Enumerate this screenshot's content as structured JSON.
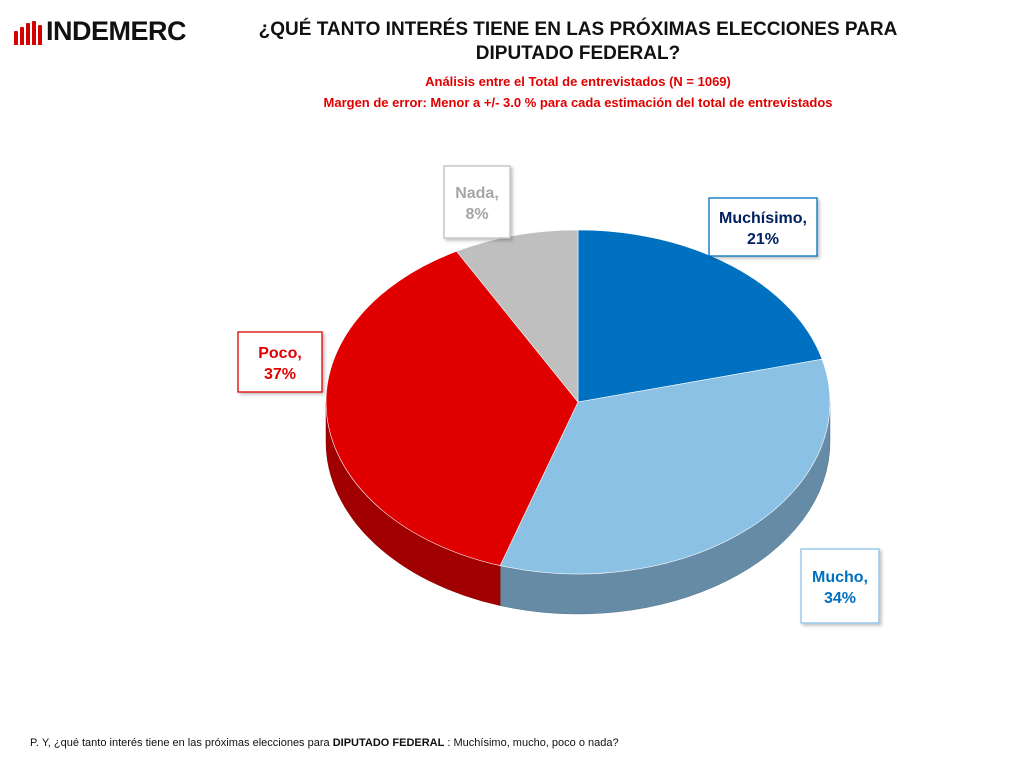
{
  "brand": {
    "name": "INDEMERC"
  },
  "header": {
    "title": "¿QUÉ TANTO INTERÉS TIENE EN LAS PRÓXIMAS ELECCIONES PARA DIPUTADO FEDERAL?",
    "subtitle1": "Análisis entre el Total de entrevistados (N = 1069)",
    "subtitle2": "Margen de error: Menor a +/- 3.0 % para cada estimación del total de entrevistados"
  },
  "footnote": {
    "prefix": "P. Y, ¿qué tanto interés tiene en las próximas elecciones para ",
    "bold": "DIPUTADO FEDERAL",
    "suffix": " : Muchísimo, mucho, poco o nada?"
  },
  "chart_data": {
    "type": "pie",
    "title": "¿QUÉ TANTO INTERÉS TIENE EN LAS PRÓXIMAS ELECCIONES PARA DIPUTADO FEDERAL?",
    "slices": [
      {
        "label": "Muchísimo",
        "value": 21,
        "display": "21%",
        "color": "#0070c0",
        "text_color": "#002060"
      },
      {
        "label": "Mucho",
        "value": 34,
        "display": "34%",
        "color": "#8cc1e6",
        "text_color": "#0070c0"
      },
      {
        "label": "Poco",
        "value": 37,
        "display": "37%",
        "color": "#e00000",
        "text_color": "#e00000"
      },
      {
        "label": "Nada",
        "value": 8,
        "display": "8%",
        "color": "#bfbfbf",
        "text_color": "#a6a6a6"
      }
    ]
  }
}
